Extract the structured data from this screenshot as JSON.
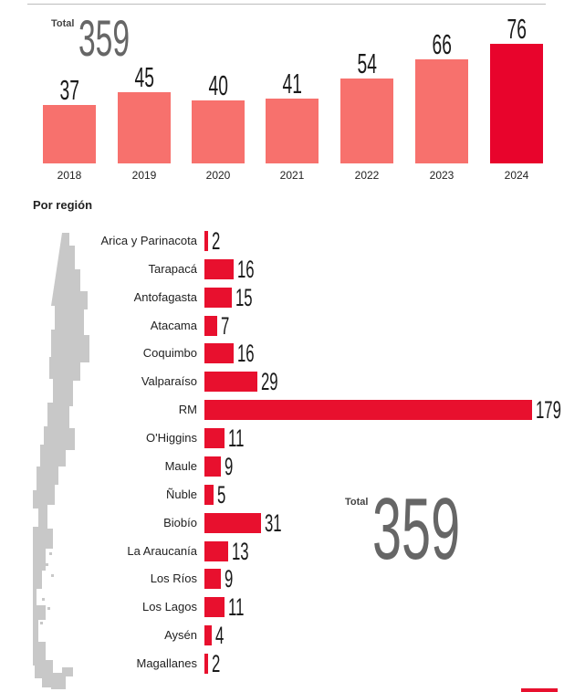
{
  "colors": {
    "bar_light": "#f7716d",
    "bar_highlight": "#e8042c",
    "region_bar": "#e8102e",
    "map": "#c8c8c8"
  },
  "chart_data": [
    {
      "type": "bar",
      "title": "",
      "total_label": "Total",
      "total_value": "359",
      "categories": [
        "2018",
        "2019",
        "2020",
        "2021",
        "2022",
        "2023",
        "2024"
      ],
      "values": [
        37,
        45,
        40,
        41,
        54,
        66,
        76
      ],
      "highlight": "2024",
      "ylim": [
        0,
        76
      ]
    },
    {
      "type": "bar",
      "orientation": "horizontal",
      "title": "Por región",
      "total_label": "Total",
      "total_value": "359",
      "categories": [
        "Arica y Parinacota",
        "Tarapacá",
        "Antofagasta",
        "Atacama",
        "Coquimbo",
        "Valparaíso",
        "RM",
        "O'Higgins",
        "Maule",
        "Ñuble",
        "Biobío",
        "La Araucanía",
        "Los Ríos",
        "Los Lagos",
        "Aysén",
        "Magallanes"
      ],
      "values": [
        2,
        16,
        15,
        7,
        16,
        29,
        179,
        11,
        9,
        5,
        31,
        13,
        9,
        11,
        4,
        2
      ],
      "xlim": [
        0,
        179
      ]
    }
  ]
}
